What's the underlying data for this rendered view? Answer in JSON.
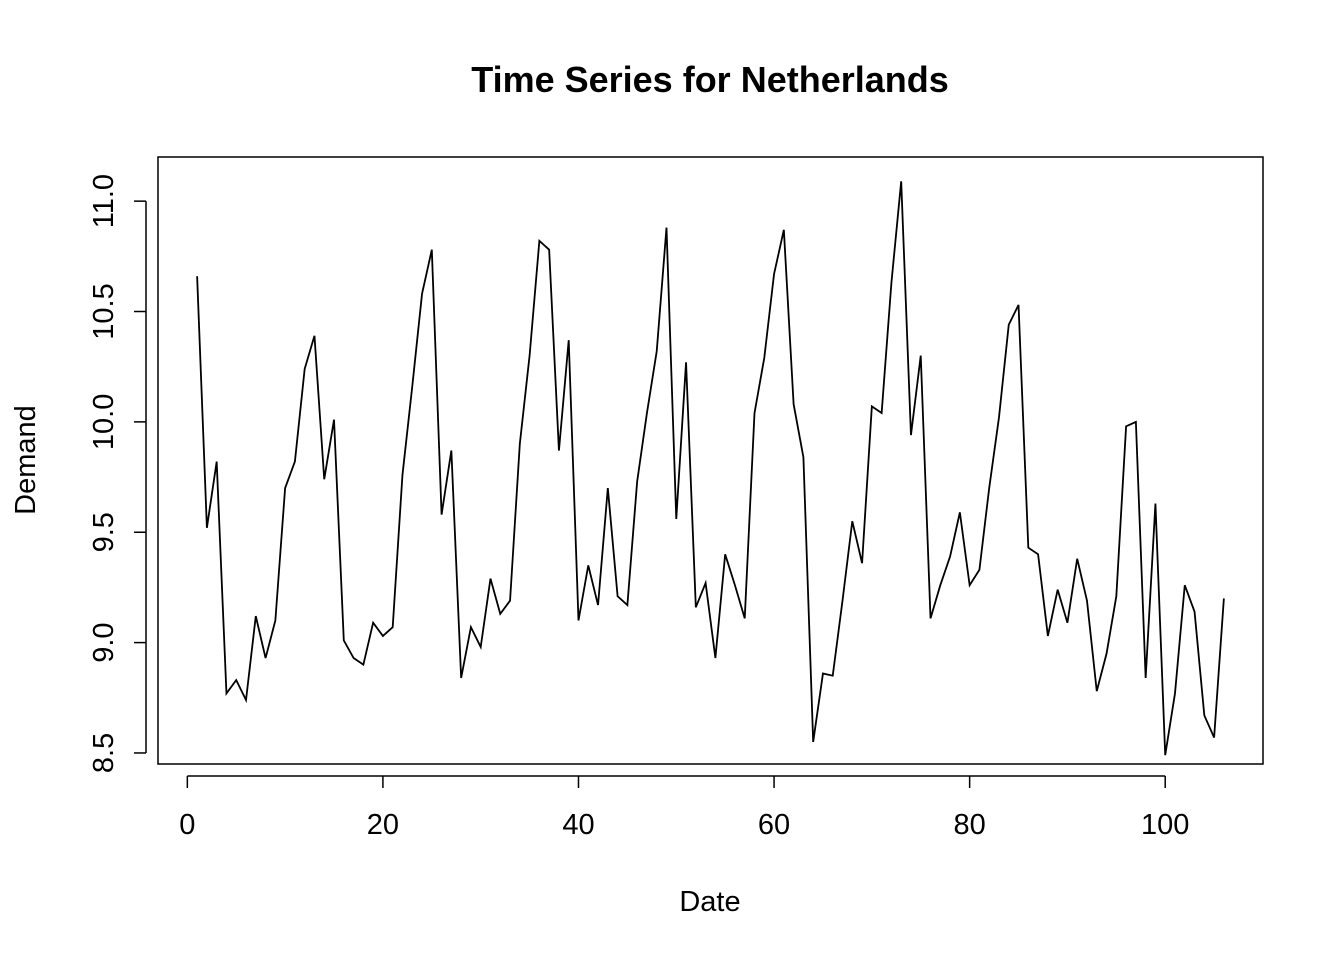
{
  "chart_data": {
    "type": "line",
    "title": "Time Series for Netherlands",
    "xlabel": "Date",
    "ylabel": "Demand",
    "xlim": [
      -3,
      110
    ],
    "ylim": [
      8.45,
      11.2
    ],
    "xticks": [
      0,
      20,
      40,
      60,
      80,
      100
    ],
    "xtick_labels": [
      "0",
      "20",
      "40",
      "60",
      "80",
      "100"
    ],
    "yticks": [
      8.5,
      9.0,
      9.5,
      10.0,
      10.5,
      11.0
    ],
    "ytick_labels": [
      "8.5",
      "9.0",
      "9.5",
      "10.0",
      "10.5",
      "11.0"
    ],
    "grid": false,
    "line_color": "#000000",
    "series": [
      {
        "x": [
          1,
          2,
          3,
          4,
          5,
          6,
          7,
          8,
          9,
          10,
          11,
          12,
          13,
          14,
          15,
          16,
          17,
          18,
          19,
          20,
          21,
          22,
          23,
          24,
          25,
          26,
          27,
          28,
          29,
          30,
          31,
          32,
          33,
          34,
          35,
          36,
          37,
          38,
          39,
          40,
          41,
          42,
          43,
          44,
          45,
          46,
          47,
          48,
          49,
          50,
          51,
          52,
          53,
          54,
          55,
          56,
          57,
          58,
          59,
          60,
          61,
          62,
          63,
          64,
          65,
          66,
          67,
          68,
          69,
          70,
          71,
          72,
          73,
          74,
          75,
          76,
          77,
          78,
          79,
          80,
          81,
          82,
          83,
          84,
          85,
          86,
          87,
          88,
          89,
          90,
          91,
          92,
          93,
          94,
          95,
          96,
          97,
          98,
          99,
          100,
          101,
          102,
          103,
          104,
          105,
          106
        ],
        "values": [
          10.66,
          9.52,
          9.82,
          8.77,
          8.83,
          8.74,
          9.12,
          8.93,
          9.1,
          9.7,
          9.82,
          10.24,
          10.39,
          9.74,
          10.01,
          9.01,
          8.93,
          8.9,
          9.09,
          9.03,
          9.07,
          9.76,
          10.16,
          10.58,
          10.78,
          9.58,
          9.87,
          8.84,
          9.07,
          8.98,
          9.29,
          9.13,
          9.19,
          9.9,
          10.3,
          10.82,
          10.78,
          9.87,
          10.37,
          9.1,
          9.35,
          9.17,
          9.7,
          9.21,
          9.17,
          9.73,
          10.04,
          10.32,
          10.88,
          9.56,
          10.27,
          9.16,
          9.27,
          8.93,
          9.4,
          9.26,
          9.11,
          10.04,
          10.29,
          10.67,
          10.87,
          10.08,
          9.84,
          8.55,
          8.86,
          8.85,
          9.19,
          9.55,
          9.36,
          10.07,
          10.04,
          10.63,
          11.09,
          9.94,
          10.3,
          9.11,
          9.26,
          9.39,
          9.59,
          9.26,
          9.33,
          9.7,
          10.02,
          10.44,
          10.53,
          9.43,
          9.4,
          9.03,
          9.24,
          9.09,
          9.38,
          9.19,
          8.78,
          8.95,
          9.21,
          9.98,
          10.0,
          8.84,
          9.63,
          8.49,
          8.77,
          9.26,
          9.14,
          8.67,
          8.57,
          9.2
        ]
      }
    ]
  }
}
